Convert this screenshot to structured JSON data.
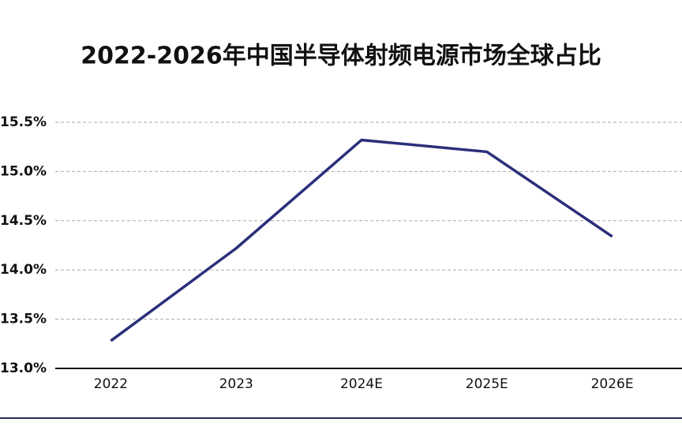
{
  "chart_data": {
    "type": "line",
    "title": "2022-2026年中国半导体射频电源市场全球占比",
    "categories": [
      "2022",
      "2023",
      "2024E",
      "2025E",
      "2026E"
    ],
    "series": [
      {
        "name": "全球占比",
        "color": "#2b2f7a",
        "values": [
          13.28,
          14.22,
          15.32,
          15.2,
          14.34
        ]
      }
    ],
    "ylim": [
      13.0,
      15.5
    ],
    "yticks": [
      {
        "value": 13.0,
        "label": "13.0%"
      },
      {
        "value": 13.5,
        "label": "13.5%"
      },
      {
        "value": 14.0,
        "label": "14.0%"
      },
      {
        "value": 14.5,
        "label": "14.5%"
      },
      {
        "value": 15.0,
        "label": "15.0%"
      },
      {
        "value": 15.5,
        "label": "15.5%"
      }
    ],
    "grid": true
  }
}
